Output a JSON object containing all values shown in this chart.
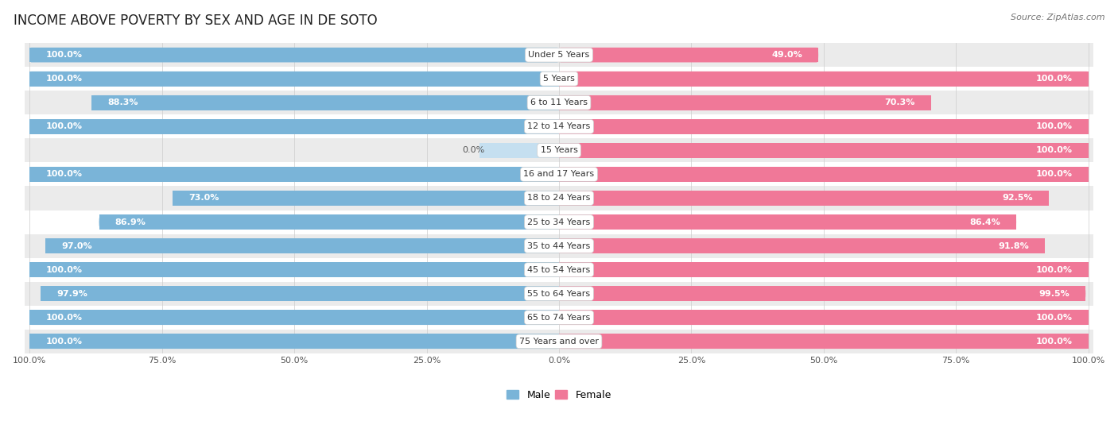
{
  "title": "INCOME ABOVE POVERTY BY SEX AND AGE IN DE SOTO",
  "source": "Source: ZipAtlas.com",
  "categories": [
    "Under 5 Years",
    "5 Years",
    "6 to 11 Years",
    "12 to 14 Years",
    "15 Years",
    "16 and 17 Years",
    "18 to 24 Years",
    "25 to 34 Years",
    "35 to 44 Years",
    "45 to 54 Years",
    "55 to 64 Years",
    "65 to 74 Years",
    "75 Years and over"
  ],
  "male_values": [
    100.0,
    100.0,
    88.3,
    100.0,
    0.0,
    100.0,
    73.0,
    86.9,
    97.0,
    100.0,
    97.9,
    100.0,
    100.0
  ],
  "female_values": [
    49.0,
    100.0,
    70.3,
    100.0,
    100.0,
    100.0,
    92.5,
    86.4,
    91.8,
    100.0,
    99.5,
    100.0,
    100.0
  ],
  "male_color": "#7ab4d8",
  "female_color": "#f07898",
  "male_color_light": "#c5dff0",
  "female_color_light": "#f8c0d0",
  "male_label": "Male",
  "female_label": "Female",
  "bar_height": 0.62,
  "background_color": "#ffffff",
  "row_colors": [
    "#ebebeb",
    "#ffffff"
  ],
  "title_fontsize": 12,
  "label_fontsize": 8,
  "value_fontsize": 8,
  "legend_fontsize": 9,
  "source_fontsize": 8,
  "bottom_tick_labels": [
    "100.0%",
    "75.0%",
    "50.0%",
    "25.0%",
    "0.0%",
    "25.0%",
    "50.0%",
    "75.0%",
    "100.0%"
  ],
  "bottom_tick_positions": [
    -100,
    -75,
    -50,
    -25,
    0,
    25,
    50,
    75,
    100
  ]
}
